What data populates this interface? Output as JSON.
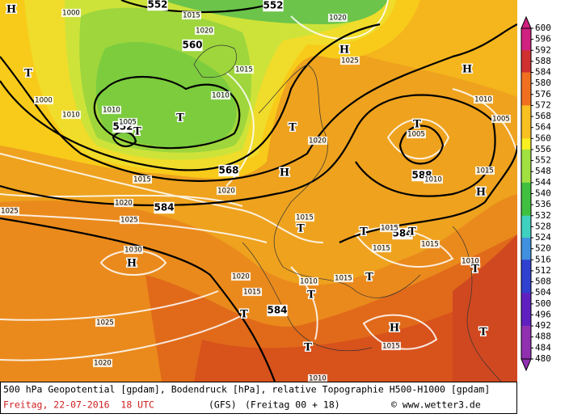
{
  "map_labels": [
    "552",
    "552",
    "560",
    "552",
    "568",
    "584",
    "584",
    "588",
    "584",
    "1000",
    "1015",
    "1020",
    "1020",
    "1025",
    "1015",
    "1010",
    "1010",
    "1005",
    "1010",
    "1000",
    "1005",
    "1010",
    "1005",
    "1010",
    "1015",
    "1015",
    "1020",
    "1025",
    "1030",
    "1020",
    "1020",
    "1015",
    "1015",
    "1015",
    "1015",
    "1010",
    "1020",
    "1015",
    "1010",
    "1015",
    "1025",
    "1020",
    "1015",
    "1010",
    "1025",
    "H",
    "T",
    "T",
    "T",
    "H",
    "H",
    "T",
    "H",
    "T",
    "H",
    "T",
    "T",
    "T",
    "H",
    "T",
    "T",
    "T",
    "T",
    "H",
    "T",
    "T"
  ],
  "colorbar": {
    "labels": [
      600,
      596,
      592,
      588,
      584,
      580,
      576,
      572,
      568,
      564,
      560,
      556,
      552,
      548,
      544,
      540,
      536,
      532,
      528,
      524,
      520,
      516,
      512,
      508,
      504,
      500,
      496,
      492,
      488,
      484,
      480
    ]
  },
  "footer": {
    "description": "500 hPa Geopotential [gpdam], Bodendruck [hPa], relative Topographie H500-H1000 [gpdam]",
    "date": "Freitag, 22-07-2016  18 UTC",
    "model": "(GFS)",
    "run": "(Freitag 00 + 18)",
    "credit": "© www.wetter3.de"
  }
}
